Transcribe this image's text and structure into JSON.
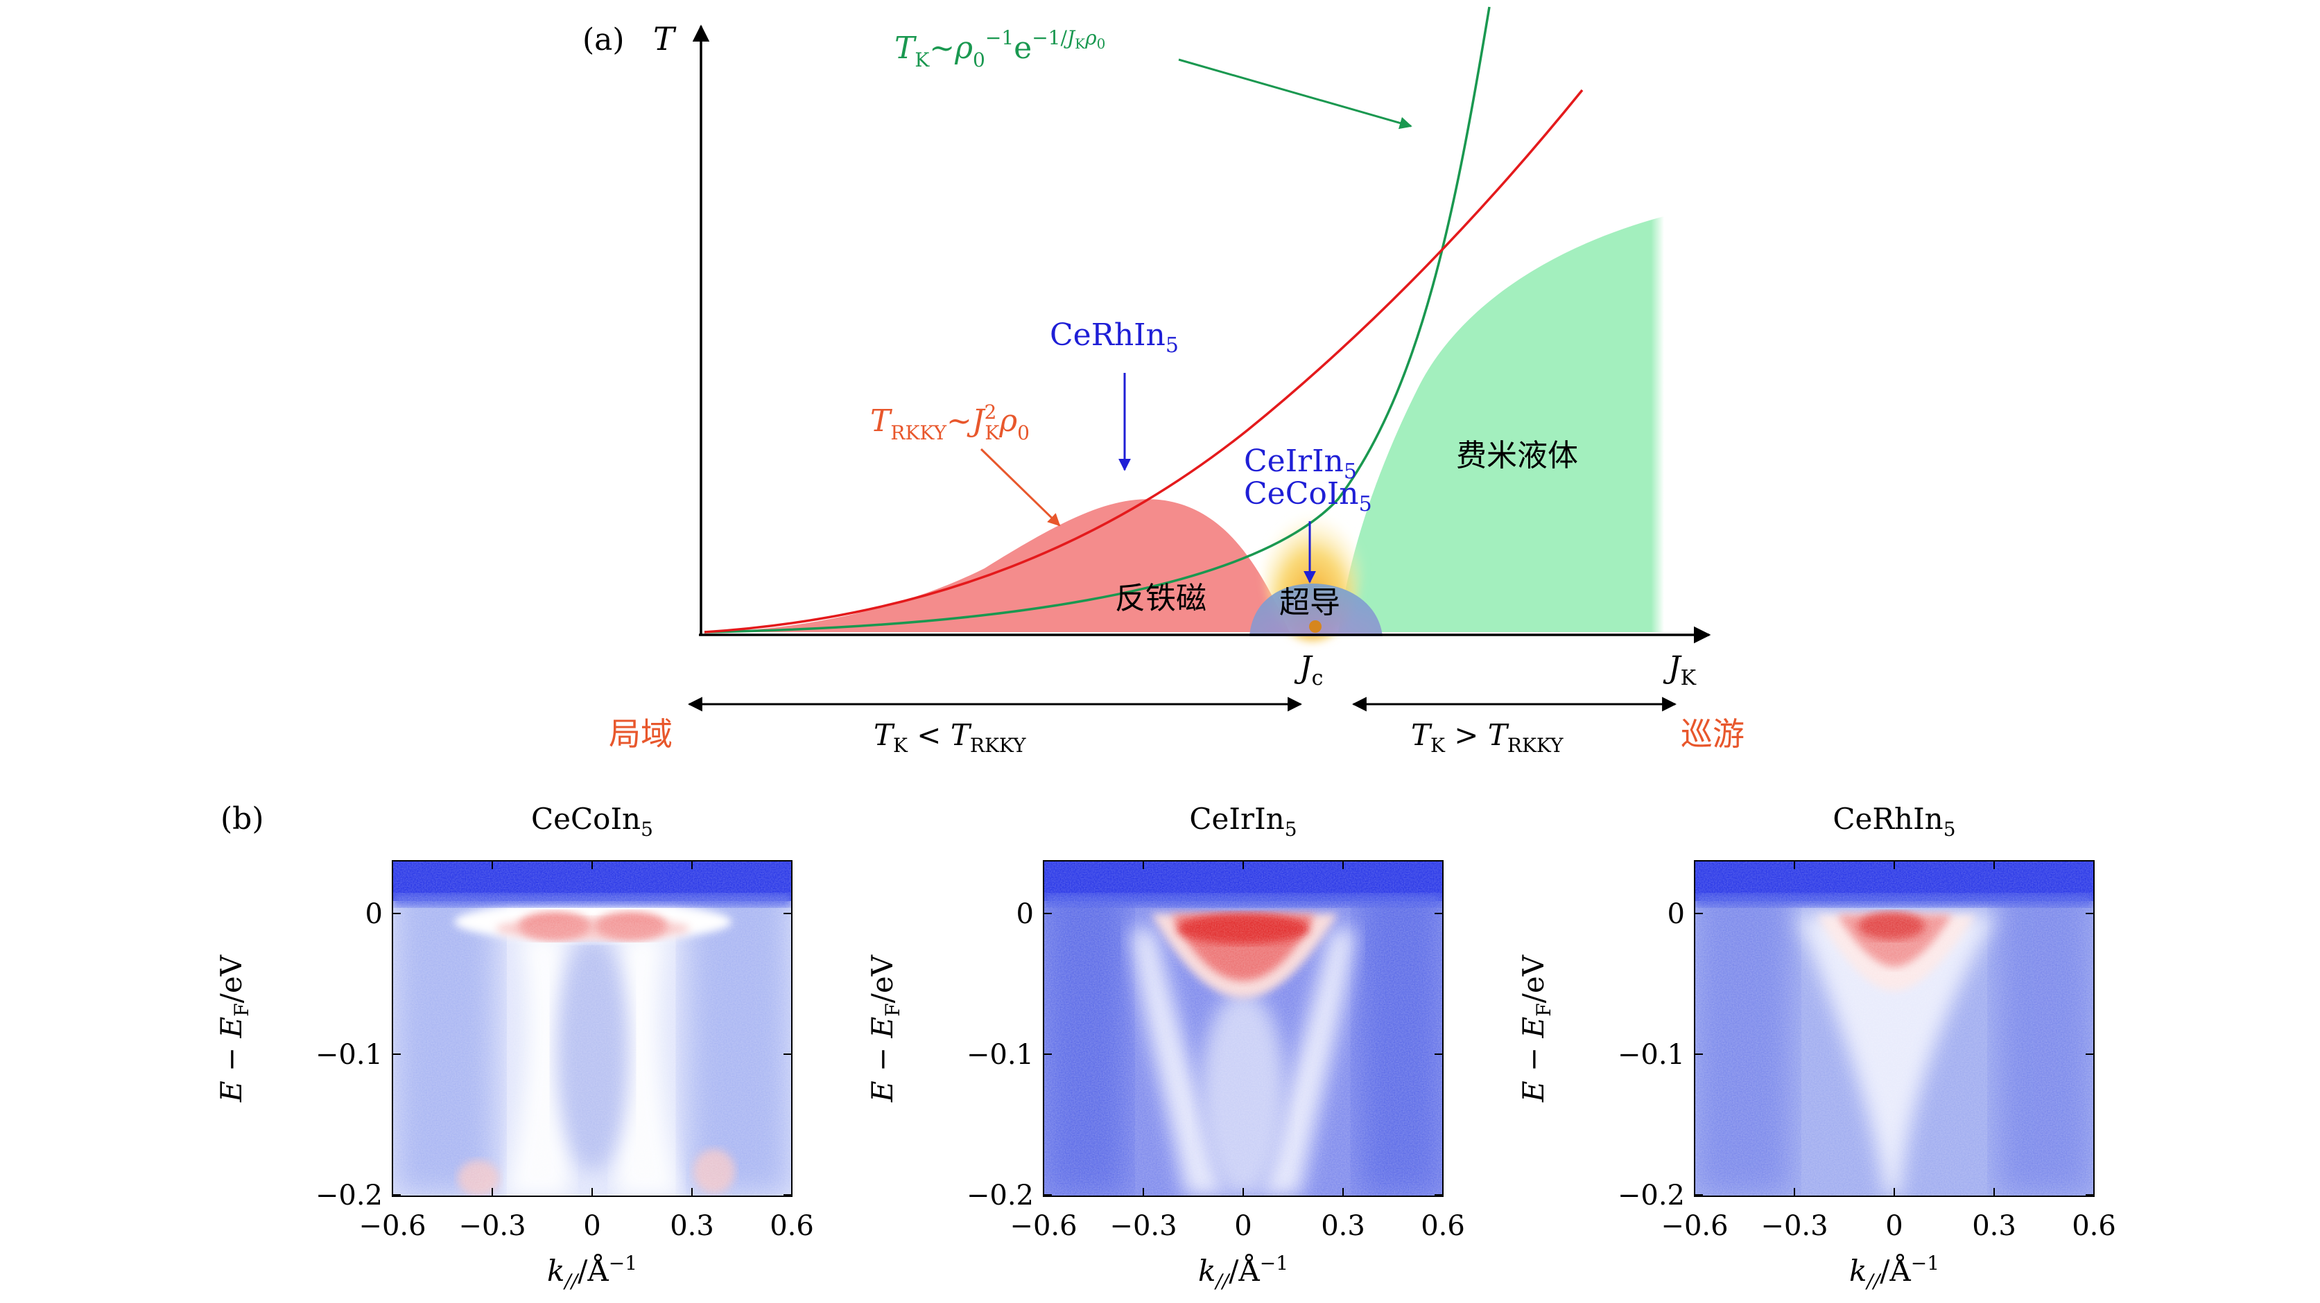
{
  "panel_a": {
    "label": "(a)",
    "y_axis_label": "T",
    "x_axis_label": {
      "main": "J",
      "sub": "K"
    },
    "jc_label": {
      "main": "J",
      "sub": "c"
    },
    "tk_formula": {
      "T": "T",
      "K_sub": "K",
      "tilde": "~",
      "rho": "ρ",
      "rho_sub": "0",
      "rho_exp": "−1",
      "e": "e",
      "e_exp": "−1/",
      "J": "J",
      "J_sub": "K",
      "rho2": "ρ",
      "rho2_sub": "0"
    },
    "trkky_formula": {
      "T": "T",
      "sub": "RKKY",
      "tilde": "~",
      "J": "J",
      "J_sup": "2",
      "J_sub": "K",
      "rho": "ρ",
      "rho_sub": "0"
    },
    "materials": {
      "rh": {
        "main": "CeRhIn",
        "sub": "5"
      },
      "ir": {
        "main": "CeIrIn",
        "sub": "5"
      },
      "co": {
        "main": "CeCoIn",
        "sub": "5"
      }
    },
    "regions": {
      "afm": "反铁磁",
      "sc": "超导",
      "fl": "费米液体"
    },
    "left_regime": {
      "word": "局域",
      "rel": {
        "T1": "T",
        "s1": "K",
        "op": " < ",
        "T2": "T",
        "s2": "RKKY"
      }
    },
    "right_regime": {
      "word": "巡游",
      "rel": {
        "T1": "T",
        "s1": "K",
        "op": " > ",
        "T2": "T",
        "s2": "RKKY"
      }
    },
    "colors": {
      "tk_curve": "#1a9850",
      "trkky_curve": "#e41a1c",
      "trkky_label": "#e8572c",
      "afm_fill": "#f48c8c",
      "fl_fill": "#a3efbe",
      "sc_fill": "#8f86c9",
      "sc_glow": "#f7c24a",
      "materials": "#1f1fd6",
      "regime_words": "#e8572c"
    }
  },
  "panel_b": {
    "label": "(b)",
    "panels": [
      {
        "title": {
          "main": "CeCoIn",
          "sub": "5"
        }
      },
      {
        "title": {
          "main": "CeIrIn",
          "sub": "5"
        }
      },
      {
        "title": {
          "main": "CeRhIn",
          "sub": "5"
        }
      }
    ],
    "ylabel": {
      "E": "E",
      "minus": " − ",
      "EF": "E",
      "EF_sub": "F",
      "unit": "/eV"
    },
    "xlabel": {
      "k": "k",
      "k_sub": "//",
      "unit": "/Å",
      "unit_exp": "−1"
    },
    "y_ticks": [
      "0",
      "−0.1",
      "−0.2"
    ],
    "x_ticks": [
      "−0.6",
      "−0.3",
      "0",
      "0.3",
      "0.6"
    ],
    "colors": {
      "cold": "#1e2de6",
      "mid": "#ffffff",
      "hot": "#e02020"
    }
  }
}
